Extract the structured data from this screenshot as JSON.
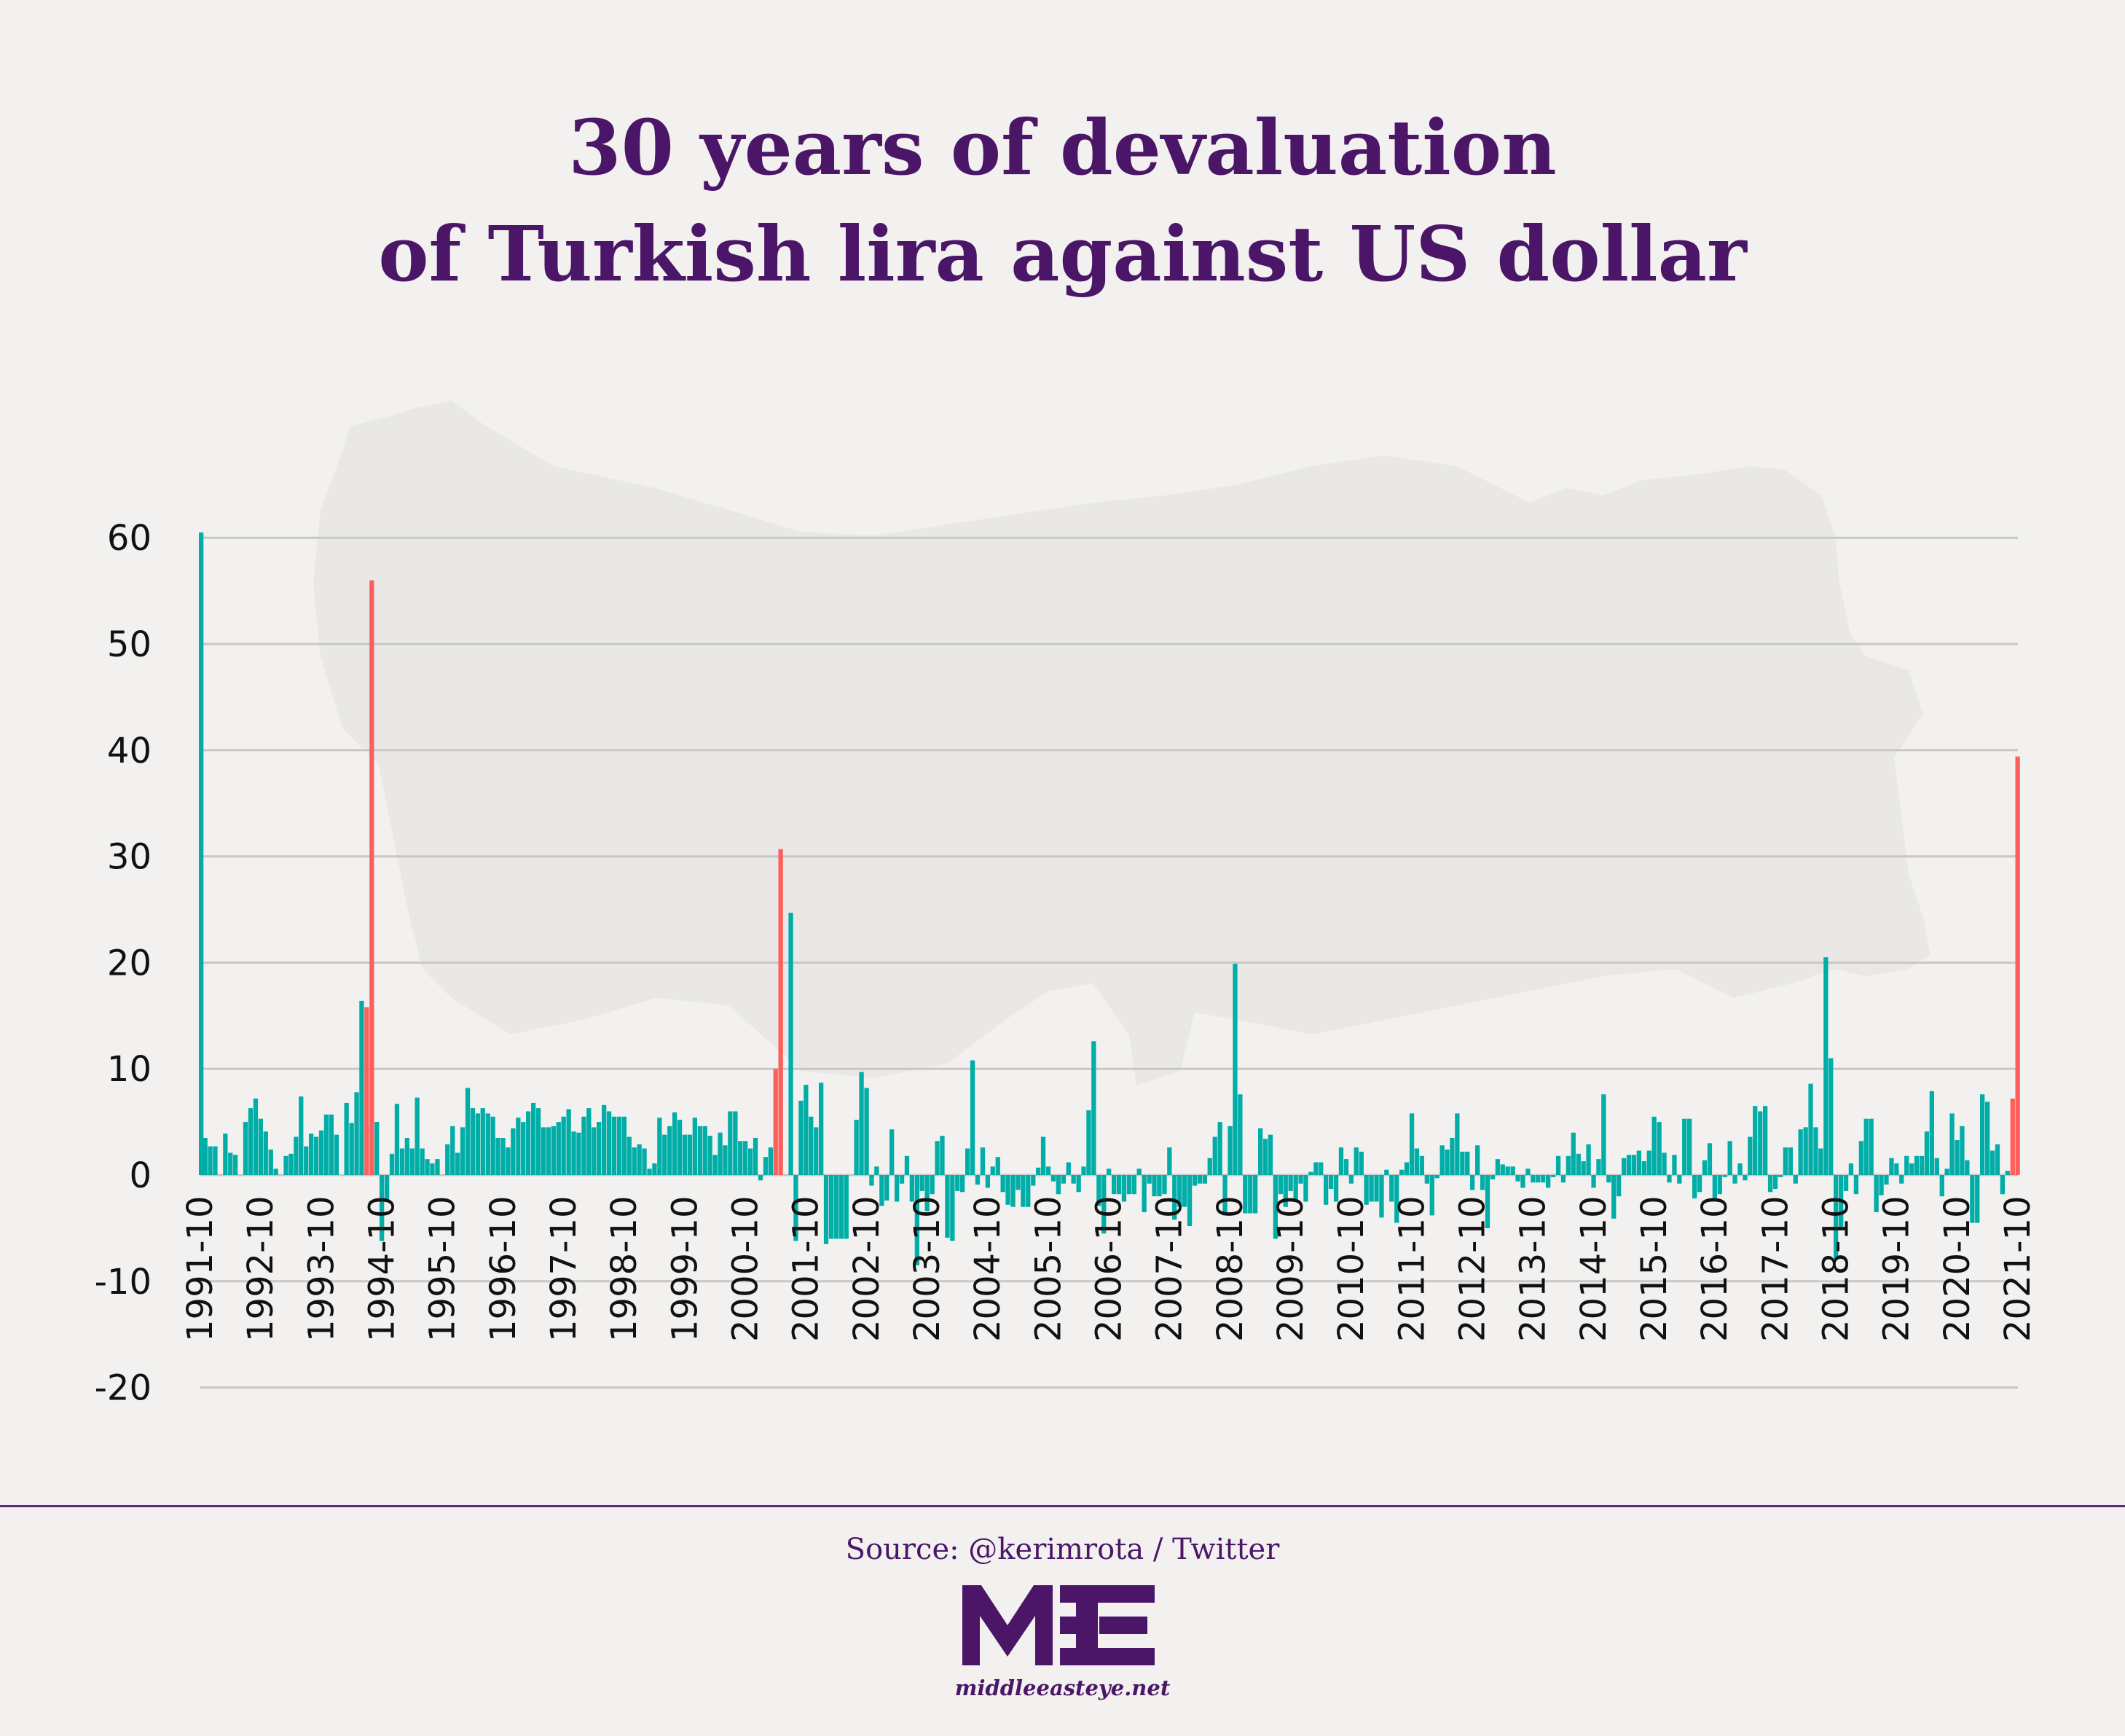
{
  "chart_data": {
    "type": "bar",
    "title_lines": [
      "30 years of devaluation",
      "of Turkish lira against US dollar"
    ],
    "xlabel": "",
    "ylabel": "",
    "ylim": [
      -20,
      60
    ],
    "yticks": [
      60,
      50,
      40,
      30,
      20,
      10,
      0,
      -10,
      -20
    ],
    "xtick_labels": [
      "1991-10",
      "1992-10",
      "1993-10",
      "1994-10",
      "1995-10",
      "1996-10",
      "1997-10",
      "1998-10",
      "1999-10",
      "2000-10",
      "2001-10",
      "2002-10",
      "2003-10",
      "2004-10",
      "2005-10",
      "2006-10",
      "2007-10",
      "2008-10",
      "2009-10",
      "2010-10",
      "2011-10",
      "2012-10",
      "2013-10",
      "2014-10",
      "2015-10",
      "2016-10",
      "2017-10",
      "2018-10",
      "2019-10",
      "2020-10",
      "2021-10"
    ],
    "grid": true,
    "colors": {
      "default": "#00ada7",
      "highlight": "#ff5f5b",
      "grid": "#c8c7c5",
      "title": "#4b1667",
      "map": "#e9e8e6"
    },
    "background_image": "turkey-map-silhouette",
    "x": [
      "1991-10",
      "1991-11",
      "1991-12",
      "1992-01",
      "1992-02",
      "1992-03",
      "1992-04",
      "1992-05",
      "1992-06",
      "1992-07",
      "1992-08",
      "1992-09",
      "1992-10",
      "1992-11",
      "1992-12",
      "1993-01",
      "1993-02",
      "1993-03",
      "1993-04",
      "1993-05",
      "1993-06",
      "1993-07",
      "1993-08",
      "1993-09",
      "1993-10",
      "1993-11",
      "1993-12",
      "1994-01",
      "1994-02",
      "1994-03",
      "1994-04",
      "1994-05",
      "1994-06",
      "1994-07",
      "1994-08",
      "1994-09",
      "1994-10",
      "1994-11",
      "1994-12",
      "1995-01",
      "1995-02",
      "1995-03",
      "1995-04",
      "1995-05",
      "1995-06",
      "1995-07",
      "1995-08",
      "1995-09",
      "1995-10",
      "1995-11",
      "1995-12",
      "1996-01",
      "1996-02",
      "1996-03",
      "1996-04",
      "1996-05",
      "1996-06",
      "1996-07",
      "1996-08",
      "1996-09",
      "1996-10",
      "1996-11",
      "1996-12",
      "1997-01",
      "1997-02",
      "1997-03",
      "1997-04",
      "1997-05",
      "1997-06",
      "1997-07",
      "1997-08",
      "1997-09",
      "1997-10",
      "1997-11",
      "1997-12",
      "1998-01",
      "1998-02",
      "1998-03",
      "1998-04",
      "1998-05",
      "1998-06",
      "1998-07",
      "1998-08",
      "1998-09",
      "1998-10",
      "1998-11",
      "1998-12",
      "1999-01",
      "1999-02",
      "1999-03",
      "1999-04",
      "1999-05",
      "1999-06",
      "1999-07",
      "1999-08",
      "1999-09",
      "1999-10",
      "1999-11",
      "1999-12",
      "2000-01",
      "2000-02",
      "2000-03",
      "2000-04",
      "2000-05",
      "2000-06",
      "2000-07",
      "2000-08",
      "2000-09",
      "2000-10",
      "2000-11",
      "2000-12",
      "2001-01",
      "2001-02",
      "2001-03",
      "2001-04",
      "2001-05",
      "2001-06",
      "2001-07",
      "2001-08",
      "2001-09",
      "2001-10",
      "2001-11",
      "2001-12",
      "2002-01",
      "2002-02",
      "2002-03",
      "2002-04",
      "2002-05",
      "2002-06",
      "2002-07",
      "2002-08",
      "2002-09",
      "2002-10",
      "2002-11",
      "2002-12",
      "2003-01",
      "2003-02",
      "2003-03",
      "2003-04",
      "2003-05",
      "2003-06",
      "2003-07",
      "2003-08",
      "2003-09",
      "2003-10",
      "2003-11",
      "2003-12",
      "2004-01",
      "2004-02",
      "2004-03",
      "2004-04",
      "2004-05",
      "2004-06",
      "2004-07",
      "2004-08",
      "2004-09",
      "2004-10",
      "2004-11",
      "2004-12",
      "2005-01",
      "2005-02",
      "2005-03",
      "2005-04",
      "2005-05",
      "2005-06",
      "2005-07",
      "2005-08",
      "2005-09",
      "2005-10",
      "2005-11",
      "2005-12",
      "2006-01",
      "2006-02",
      "2006-03",
      "2006-04",
      "2006-05",
      "2006-06",
      "2006-07",
      "2006-08",
      "2006-09",
      "2006-10",
      "2006-11",
      "2006-12",
      "2007-01",
      "2007-02",
      "2007-03",
      "2007-04",
      "2007-05",
      "2007-06",
      "2007-07",
      "2007-08",
      "2007-09",
      "2007-10",
      "2007-11",
      "2007-12",
      "2008-01",
      "2008-02",
      "2008-03",
      "2008-04",
      "2008-05",
      "2008-06",
      "2008-07",
      "2008-08",
      "2008-09",
      "2008-10",
      "2008-11",
      "2008-12",
      "2009-01",
      "2009-02",
      "2009-03",
      "2009-04",
      "2009-05",
      "2009-06",
      "2009-07",
      "2009-08",
      "2009-09",
      "2009-10",
      "2009-11",
      "2009-12",
      "2010-01",
      "2010-02",
      "2010-03",
      "2010-04",
      "2010-05",
      "2010-06",
      "2010-07",
      "2010-08",
      "2010-09",
      "2010-10",
      "2010-11",
      "2010-12",
      "2011-01",
      "2011-02",
      "2011-03",
      "2011-04",
      "2011-05",
      "2011-06",
      "2011-07",
      "2011-08",
      "2011-09",
      "2011-10",
      "2011-11",
      "2011-12",
      "2012-01",
      "2012-02",
      "2012-03",
      "2012-04",
      "2012-05",
      "2012-06",
      "2012-07",
      "2012-08",
      "2012-09",
      "2012-10",
      "2012-11",
      "2012-12",
      "2013-01",
      "2013-02",
      "2013-03",
      "2013-04",
      "2013-05",
      "2013-06",
      "2013-07",
      "2013-08",
      "2013-09",
      "2013-10",
      "2013-11",
      "2013-12",
      "2014-01",
      "2014-02",
      "2014-03",
      "2014-04",
      "2014-05",
      "2014-06",
      "2014-07",
      "2014-08",
      "2014-09",
      "2014-10",
      "2014-11",
      "2014-12",
      "2015-01",
      "2015-02",
      "2015-03",
      "2015-04",
      "2015-05",
      "2015-06",
      "2015-07",
      "2015-08",
      "2015-09",
      "2015-10",
      "2015-11",
      "2015-12",
      "2016-01",
      "2016-02",
      "2016-03",
      "2016-04",
      "2016-05",
      "2016-06",
      "2016-07",
      "2016-08",
      "2016-09",
      "2016-10",
      "2016-11",
      "2016-12",
      "2017-01",
      "2017-02",
      "2017-03",
      "2017-04",
      "2017-05",
      "2017-06",
      "2017-07",
      "2017-08",
      "2017-09",
      "2017-10",
      "2017-11",
      "2017-12",
      "2018-01",
      "2018-02",
      "2018-03",
      "2018-04",
      "2018-05",
      "2018-06",
      "2018-07",
      "2018-08",
      "2018-09",
      "2018-10",
      "2018-11",
      "2018-12",
      "2019-01",
      "2019-02",
      "2019-03",
      "2019-04",
      "2019-05",
      "2019-06",
      "2019-07",
      "2019-08",
      "2019-09",
      "2019-10",
      "2019-11",
      "2019-12",
      "2020-01",
      "2020-02",
      "2020-03",
      "2020-04",
      "2020-05",
      "2020-06",
      "2020-07",
      "2020-08",
      "2020-09",
      "2020-10",
      "2020-11",
      "2020-12",
      "2021-01",
      "2021-02",
      "2021-03",
      "2021-04",
      "2021-05",
      "2021-06",
      "2021-07",
      "2021-08",
      "2021-09",
      "2021-10"
    ],
    "values": [
      60.5,
      3.5,
      2.7,
      2.7,
      0,
      3.9,
      2.1,
      1.9,
      0,
      5.0,
      6.3,
      7.2,
      5.3,
      4.1,
      2.4,
      0.6,
      0,
      1.8,
      2.0,
      3.6,
      7.4,
      2.7,
      3.9,
      3.6,
      4.2,
      5.7,
      5.7,
      3.8,
      0,
      6.8,
      4.9,
      7.8,
      16.4,
      15.8,
      56.0,
      5.0,
      -6.2,
      -2.3,
      2.0,
      6.7,
      2.5,
      3.5,
      2.5,
      7.3,
      2.5,
      1.5,
      1.1,
      1.5,
      0,
      2.9,
      4.6,
      2.1,
      4.5,
      8.2,
      6.3,
      5.8,
      6.3,
      5.8,
      5.5,
      3.5,
      3.5,
      2.6,
      4.4,
      5.4,
      5.0,
      6.0,
      6.8,
      6.3,
      4.5,
      4.5,
      4.6,
      5.0,
      5.5,
      6.2,
      4.1,
      4.0,
      5.5,
      6.3,
      4.5,
      5.0,
      6.6,
      6.0,
      5.5,
      5.5,
      5.5,
      3.6,
      2.6,
      2.9,
      2.5,
      0.6,
      1.1,
      5.4,
      3.8,
      4.6,
      5.9,
      5.2,
      3.8,
      3.8,
      5.4,
      4.6,
      4.6,
      3.7,
      1.9,
      4.0,
      2.8,
      6.0,
      6.0,
      3.2,
      3.2,
      2.5,
      3.5,
      -0.5,
      1.7,
      2.6,
      10.0,
      30.7,
      0,
      24.7,
      -6.2,
      7.0,
      8.5,
      5.5,
      4.5,
      8.7,
      -6.5,
      -6.0,
      -6.0,
      -6.0,
      -6.0,
      0,
      5.2,
      9.7,
      8.2,
      -1.0,
      0.8,
      -2.9,
      -2.4,
      4.3,
      -2.5,
      -0.8,
      1.8,
      -2.5,
      -8.5,
      -1.5,
      -3.4,
      -1.8,
      3.2,
      3.7,
      -5.9,
      -6.2,
      -1.5,
      -1.6,
      2.5,
      10.8,
      -0.9,
      2.6,
      -1.2,
      0.8,
      1.7,
      -1.6,
      -2.8,
      -3.0,
      -1.4,
      -3.0,
      -3.0,
      -1.0,
      0.7,
      3.6,
      0.8,
      -0.6,
      -1.8,
      -0.8,
      1.2,
      -0.8,
      -1.6,
      0.8,
      6.1,
      12.6,
      -2.9,
      -5.5,
      0.6,
      -1.8,
      -1.8,
      -2.5,
      -1.8,
      -1.8,
      0.6,
      -3.5,
      -0.8,
      -2.0,
      -2.0,
      -1.8,
      2.6,
      -4.2,
      -3.0,
      -3.0,
      -4.8,
      -1.0,
      -0.8,
      -0.8,
      1.6,
      3.6,
      5.0,
      -3.8,
      4.6,
      19.9,
      7.6,
      -3.6,
      -3.6,
      -3.6,
      4.4,
      3.4,
      3.8,
      -6.0,
      -1.8,
      -3.0,
      -1.5,
      -2.5,
      -0.8,
      -2.5,
      0.3,
      1.2,
      1.2,
      -2.8,
      -1.3,
      -2.5,
      2.6,
      1.5,
      -0.8,
      2.6,
      2.2,
      -2.8,
      -2.5,
      -2.5,
      -4.0,
      0.5,
      -2.5,
      -4.5,
      0.5,
      1.2,
      5.8,
      2.5,
      1.8,
      -0.8,
      -3.8,
      -0.3,
      2.8,
      2.4,
      3.5,
      5.8,
      2.2,
      2.2,
      -1.4,
      2.8,
      -1.4,
      -5.0,
      -0.4,
      1.5,
      1.0,
      0.8,
      0.8,
      -0.6,
      -1.2,
      0.6,
      -0.7,
      -0.7,
      -0.7,
      -1.2,
      -0.2,
      1.8,
      -0.7,
      1.8,
      4.0,
      2.0,
      1.3,
      2.9,
      -1.2,
      1.5,
      7.6,
      -0.7,
      -4.1,
      -2.0,
      1.6,
      1.9,
      1.9,
      2.3,
      1.3,
      2.3,
      5.5,
      5.0,
      2.1,
      -0.7,
      1.9,
      -0.8,
      5.3,
      5.3,
      -2.2,
      -1.6,
      1.4,
      3.0,
      -2.3,
      -1.8,
      -0.2,
      3.2,
      -0.8,
      1.1,
      -0.5,
      3.6,
      6.5,
      6.0,
      6.5,
      -1.6,
      -1.3,
      -0.2,
      2.6,
      2.6,
      -0.8,
      4.3,
      4.5,
      8.6,
      4.5,
      2.5,
      20.5,
      11.0,
      -8.0,
      -5.0,
      -1.5,
      1.1,
      -1.8,
      3.2,
      5.3,
      5.3,
      -3.5,
      -1.9,
      -0.9,
      1.6,
      1.1,
      -0.8,
      1.8,
      1.1,
      1.8,
      1.8,
      4.1,
      7.9,
      1.6,
      -2.0,
      0.6,
      5.8,
      3.3,
      4.6,
      1.4,
      -4.5,
      -4.5,
      7.6,
      6.9,
      2.3,
      2.9,
      -1.8,
      0.4,
      7.2,
      39.4
    ],
    "highlighted": [
      "1994-07",
      "1994-08",
      "2001-04",
      "2001-05",
      "2021-09",
      "2021-10"
    ]
  },
  "footer": {
    "source": "Source: @kerimrota / Twitter",
    "logo_text": "MEE",
    "site": "middleeasteye.net"
  }
}
